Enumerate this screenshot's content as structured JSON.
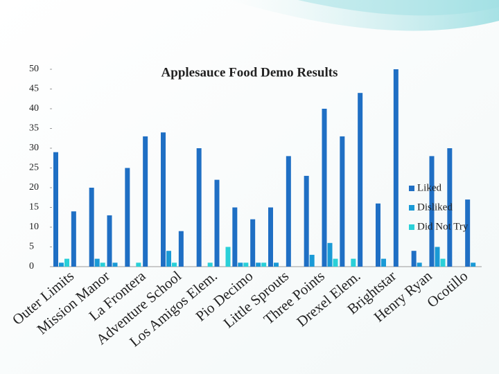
{
  "chart_data": {
    "type": "bar",
    "title": "Applesauce Food Demo Results",
    "categories": [
      null,
      "Outer Limits",
      null,
      "Mission Manor",
      null,
      "La Frontera",
      null,
      "Adventure School",
      null,
      "Los Amigos Elem.",
      null,
      "Pio Decimo",
      null,
      "Little Sprouts",
      null,
      "Three Points",
      null,
      "Drexel Elem.",
      null,
      "Brightstar",
      null,
      "Henry Ryan",
      null,
      "Ocotillo"
    ],
    "series": [
      {
        "name": "Liked",
        "color": "#1f6fc4",
        "values": [
          29,
          14,
          20,
          13,
          25,
          33,
          34,
          9,
          30,
          22,
          15,
          12,
          15,
          28,
          23,
          40,
          33,
          44,
          16,
          50,
          4,
          28,
          30,
          17
        ]
      },
      {
        "name": "Disliked",
        "color": "#1a9ad6",
        "values": [
          1,
          0,
          2,
          1,
          0,
          0,
          4,
          0,
          0,
          0,
          1,
          1,
          1,
          0,
          3,
          6,
          0,
          0,
          2,
          0,
          1,
          5,
          0,
          1
        ]
      },
      {
        "name": "Did Not Try",
        "color": "#2ad0d8",
        "values": [
          2,
          0,
          1,
          0,
          1,
          0,
          1,
          0,
          1,
          5,
          1,
          1,
          0,
          0,
          0,
          2,
          2,
          0,
          0,
          0,
          0,
          2,
          0,
          0
        ]
      }
    ],
    "ylim": [
      0,
      50
    ],
    "yticks": [
      0,
      5,
      10,
      15,
      20,
      25,
      30,
      35,
      40,
      45,
      50
    ],
    "legend": "right"
  }
}
